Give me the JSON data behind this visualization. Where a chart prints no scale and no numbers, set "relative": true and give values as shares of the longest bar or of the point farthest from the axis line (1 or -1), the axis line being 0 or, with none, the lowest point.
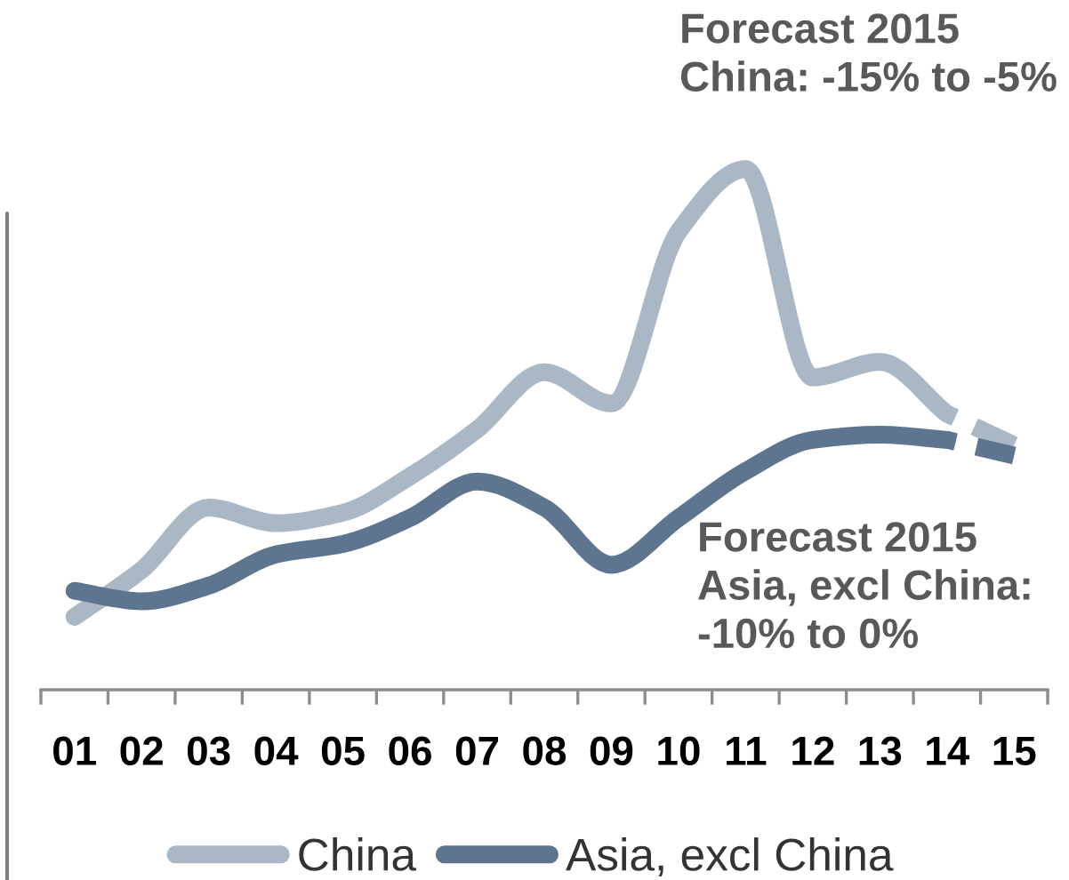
{
  "chart_data": {
    "type": "line",
    "relative": true,
    "categories": [
      "01",
      "02",
      "03",
      "04",
      "05",
      "06",
      "07",
      "08",
      "09",
      "10",
      "11",
      "12",
      "13",
      "14",
      "15"
    ],
    "series": [
      {
        "name": "China",
        "color": "#aab8c5",
        "values": [
          0.14,
          0.23,
          0.35,
          0.32,
          0.34,
          0.41,
          0.5,
          0.61,
          0.55,
          0.88,
          1,
          0.6,
          0.63,
          0.53,
          null
        ]
      },
      {
        "name": "Asia, excl China",
        "color": "#5e7590",
        "values": [
          0.19,
          0.17,
          0.2,
          0.26,
          0.28,
          0.33,
          0.4,
          0.35,
          0.24,
          0.33,
          0.42,
          0.48,
          0.49,
          0.48,
          null
        ]
      },
      {
        "color": "#aab8c5",
        "line_style": "dashed",
        "values": [
          null,
          null,
          null,
          null,
          null,
          null,
          null,
          null,
          null,
          null,
          null,
          null,
          null,
          0.53,
          0.47
        ]
      },
      {
        "color": "#5e7590",
        "line_style": "dashed",
        "values": [
          null,
          null,
          null,
          null,
          null,
          null,
          null,
          null,
          null,
          null,
          null,
          null,
          null,
          0.48,
          0.45
        ]
      }
    ],
    "annotations": [
      "Forecast 2015\nChina: -15% to -5%",
      "Forecast 2015\nAsia, excl China:\n-10% to 0%"
    ],
    "legend": "bottom"
  }
}
